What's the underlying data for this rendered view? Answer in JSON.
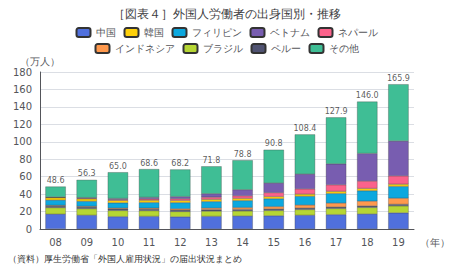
{
  "chart_data": {
    "type": "bar",
    "stacked": true,
    "title": "［図表４］外国人労働者の出身国別・推移",
    "ylabel": "（万人）",
    "xlabel": "（年）",
    "source": "（資料）厚生労働省「外国人雇用状況」の届出状況まとめ",
    "categories": [
      "08",
      "09",
      "10",
      "11",
      "12",
      "13",
      "14",
      "15",
      "16",
      "17",
      "18",
      "19"
    ],
    "series": [
      {
        "name": "中国",
        "values": [
          17.0,
          15.8,
          14.2,
          14.5,
          14.0,
          14.5,
          14.9,
          15.2,
          15.8,
          16.5,
          17.2,
          18.5
        ]
      },
      {
        "name": "ブラジル",
        "values": [
          7.5,
          7.5,
          7.0,
          6.5,
          6.0,
          6.0,
          5.8,
          6.0,
          6.5,
          7.0,
          7.5,
          8.0
        ]
      },
      {
        "name": "ペルー",
        "values": [
          1.8,
          1.8,
          1.8,
          1.7,
          1.7,
          1.7,
          1.7,
          1.7,
          1.7,
          1.7,
          1.7,
          1.8
        ]
      },
      {
        "name": "インドネシア",
        "values": [
          0.8,
          0.9,
          1.0,
          1.2,
          1.5,
          1.8,
          2.2,
          2.8,
          3.5,
          4.5,
          5.5,
          7.0
        ]
      },
      {
        "name": "フィリピン",
        "values": [
          6.0,
          5.8,
          6.0,
          6.5,
          7.0,
          7.5,
          8.0,
          9.0,
          10.0,
          11.0,
          12.0,
          13.5
        ]
      },
      {
        "name": "韓国",
        "values": [
          2.8,
          2.8,
          2.8,
          2.6,
          2.5,
          2.5,
          2.5,
          2.5,
          2.5,
          2.5,
          2.6,
          2.6
        ]
      },
      {
        "name": "ネパール",
        "values": [
          0.4,
          0.7,
          1.0,
          1.5,
          2.0,
          2.5,
          3.0,
          4.5,
          6.0,
          7.5,
          8.5,
          9.5
        ]
      },
      {
        "name": "ベトナム",
        "values": [
          0.4,
          0.7,
          1.2,
          1.8,
          2.5,
          4.0,
          7.0,
          11.0,
          17.0,
          24.0,
          31.6,
          40.0
        ]
      },
      {
        "name": "その他",
        "values": [
          11.9,
          20.3,
          30.0,
          32.3,
          31.0,
          31.3,
          33.7,
          38.1,
          45.4,
          53.2,
          59.4,
          65.0
        ]
      }
    ],
    "totals": [
      48.6,
      56.3,
      65.0,
      68.6,
      68.2,
      71.8,
      78.8,
      90.8,
      108.4,
      127.9,
      146.0,
      165.9
    ],
    "total_labels": [
      "48.6",
      "56.3",
      "65.0",
      "68.6",
      "68.2",
      "71.8",
      "78.8",
      "90.8",
      "108.4",
      "127.9",
      "146.0",
      "165.9"
    ],
    "legend": "top",
    "legend_rows": [
      [
        "中国",
        "韓国",
        "フィリピン",
        "ベトナム",
        "ネパール"
      ],
      [
        "インドネシア",
        "ブラジル",
        "ペルー",
        "その他"
      ]
    ],
    "ylim": [
      0,
      180
    ],
    "yticks": [
      0,
      20,
      40,
      60,
      80,
      100,
      120,
      140,
      160,
      180
    ],
    "grid": true
  }
}
